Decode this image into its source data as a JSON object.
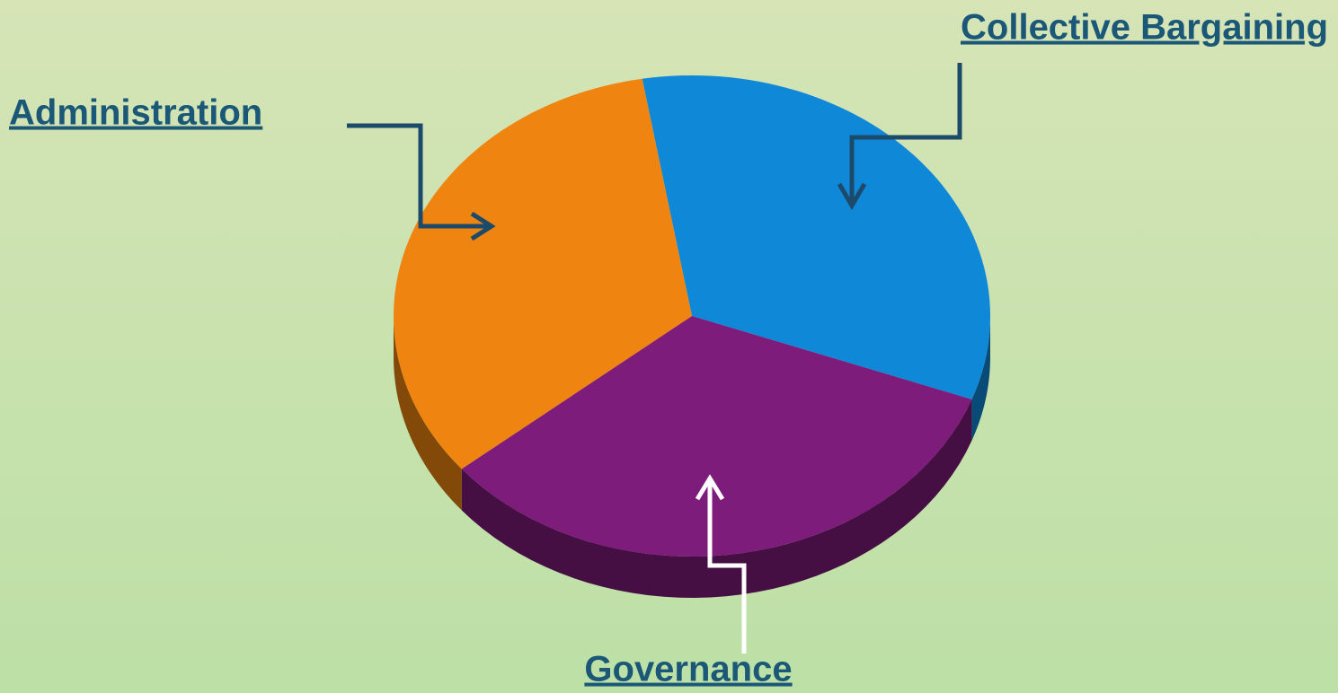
{
  "chart_data": {
    "type": "pie3d",
    "categories": [
      "Collective Bargaining",
      "Governance",
      "Administration"
    ],
    "values": [
      33.3,
      33.4,
      33.3
    ],
    "colors": [
      "#1088d8",
      "#7e1c7c",
      "#ef8510"
    ]
  }
}
